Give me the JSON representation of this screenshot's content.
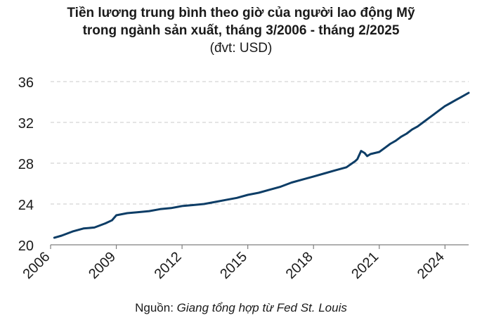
{
  "header": {
    "title_line1": "Tiền lương trung bình theo giờ của người lao động Mỹ",
    "title_line2": "trong ngành sản xuất, tháng 3/2006 - tháng 2/2025",
    "unit": "(đvt: USD)"
  },
  "source": {
    "prefix": "Nguồn: ",
    "text": "Giang tổng hợp từ Fed St. Louis"
  },
  "chart_data": {
    "type": "line",
    "title": "Tiền lương trung bình theo giờ của người lao động Mỹ trong ngành sản xuất, tháng 3/2006 - tháng 2/2025",
    "ylabel": "(đvt: USD)",
    "xlabel": "",
    "xlim": [
      2006.17,
      2025.08
    ],
    "ylim": [
      20,
      36
    ],
    "yticks": [
      20,
      24,
      28,
      32,
      36
    ],
    "xticks": [
      2006,
      2009,
      2012,
      2015,
      2018,
      2021,
      2024
    ],
    "grid": "horizontal",
    "legend": "none",
    "color": "#0d3d66",
    "series": [
      {
        "x": [
          2006.17,
          2006.5,
          2007.0,
          2007.5,
          2008.0,
          2008.5,
          2008.8,
          2009.0,
          2009.5,
          2010.0,
          2010.5,
          2011.0,
          2011.5,
          2012.0,
          2012.5,
          2013.0,
          2013.5,
          2014.0,
          2014.5,
          2015.0,
          2015.5,
          2016.0,
          2016.5,
          2017.0,
          2017.5,
          2018.0,
          2018.5,
          2019.0,
          2019.5,
          2019.9,
          2020.0,
          2020.17,
          2020.33,
          2020.45,
          2020.6,
          2020.8,
          2021.0,
          2021.25,
          2021.5,
          2021.75,
          2022.0,
          2022.25,
          2022.5,
          2022.75,
          2023.0,
          2023.25,
          2023.5,
          2023.75,
          2024.0,
          2024.25,
          2024.5,
          2024.75,
          2025.08
        ],
        "y": [
          20.7,
          20.9,
          21.3,
          21.6,
          21.7,
          22.1,
          22.4,
          22.9,
          23.1,
          23.2,
          23.3,
          23.5,
          23.6,
          23.8,
          23.9,
          24.0,
          24.2,
          24.4,
          24.6,
          24.9,
          25.1,
          25.4,
          25.7,
          26.1,
          26.4,
          26.7,
          27.0,
          27.3,
          27.6,
          28.2,
          28.4,
          29.2,
          29.0,
          28.7,
          28.9,
          29.0,
          29.1,
          29.5,
          29.9,
          30.2,
          30.6,
          30.9,
          31.3,
          31.6,
          32.0,
          32.4,
          32.8,
          33.2,
          33.6,
          33.9,
          34.2,
          34.5,
          34.9
        ]
      }
    ]
  }
}
